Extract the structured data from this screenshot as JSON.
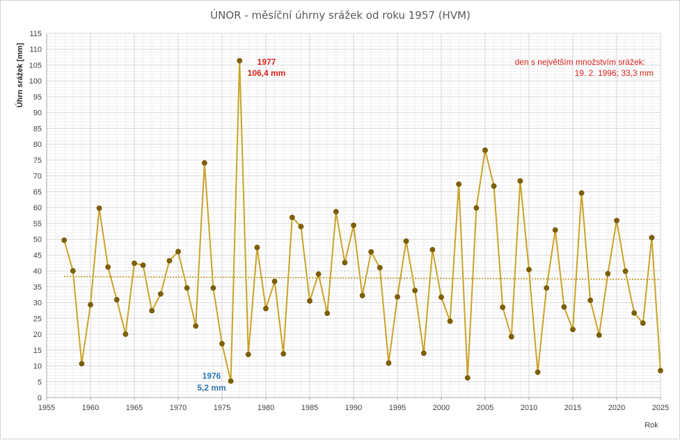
{
  "chart_data": {
    "type": "line",
    "title": "ÚNOR - měsíční úhrny srážek od roku 1957 (HVM)",
    "xlabel": "Rok",
    "ylabel": "Úhrn srážek [mm]",
    "xlim": [
      1955,
      2025
    ],
    "ylim": [
      0,
      115
    ],
    "xticks": [
      1955,
      1960,
      1965,
      1970,
      1975,
      1980,
      1985,
      1990,
      1995,
      2000,
      2005,
      2010,
      2015,
      2020,
      2025
    ],
    "yticks": [
      0,
      5,
      10,
      15,
      20,
      25,
      30,
      35,
      40,
      45,
      50,
      55,
      60,
      65,
      70,
      75,
      80,
      85,
      90,
      95,
      100,
      105,
      110,
      115
    ],
    "grid": true,
    "line_color": "#c9a227",
    "marker_color": "#7f6000",
    "trend_color": "#b8860b",
    "series": [
      {
        "x": [
          1957,
          1958,
          1959,
          1960,
          1961,
          1962,
          1963,
          1964,
          1965,
          1966,
          1967,
          1968,
          1969,
          1970,
          1971,
          1972,
          1973,
          1974,
          1975,
          1976,
          1977,
          1978,
          1979,
          1980,
          1981,
          1982,
          1983,
          1984,
          1985,
          1986,
          1987,
          1988,
          1989,
          1990,
          1991,
          1992,
          1993,
          1994,
          1995,
          1996,
          1997,
          1998,
          1999,
          2000,
          2001,
          2002,
          2003,
          2004,
          2005,
          2006,
          2007,
          2008,
          2009,
          2010,
          2011,
          2012,
          2013,
          2014,
          2015,
          2016,
          2017,
          2018,
          2019,
          2020,
          2021,
          2022,
          2023,
          2024,
          2025
        ],
        "values": [
          49.7,
          40.0,
          10.7,
          29.3,
          59.8,
          41.2,
          30.9,
          20.0,
          42.4,
          41.8,
          27.4,
          32.7,
          43.2,
          46.1,
          34.6,
          22.6,
          74.1,
          34.6,
          17.0,
          5.2,
          106.4,
          13.6,
          47.4,
          28.1,
          36.7,
          13.8,
          56.9,
          54.0,
          30.5,
          39.0,
          26.6,
          58.7,
          42.6,
          54.4,
          32.2,
          46.0,
          41.0,
          10.9,
          31.8,
          49.4,
          33.8,
          14.0,
          46.7,
          31.7,
          24.1,
          67.4,
          6.2,
          59.9,
          78.1,
          66.8,
          28.5,
          19.2,
          68.4,
          40.4,
          8.0,
          34.6,
          52.9,
          28.6,
          21.5,
          64.6,
          30.7,
          19.7,
          39.1,
          55.9,
          39.9,
          26.7,
          23.5,
          50.5,
          8.5
        ]
      }
    ],
    "trend": {
      "start": [
        1957,
        38.2
      ],
      "end": [
        2025,
        37.3
      ]
    },
    "annotations": {
      "max_year": "1977",
      "max_value": "106,4 mm",
      "min_year": "1976",
      "min_value": "5,2 mm",
      "note_line1": "den s největším množstvím srážek:",
      "note_line2": "19. 2. 1996; 33,3 mm"
    }
  }
}
